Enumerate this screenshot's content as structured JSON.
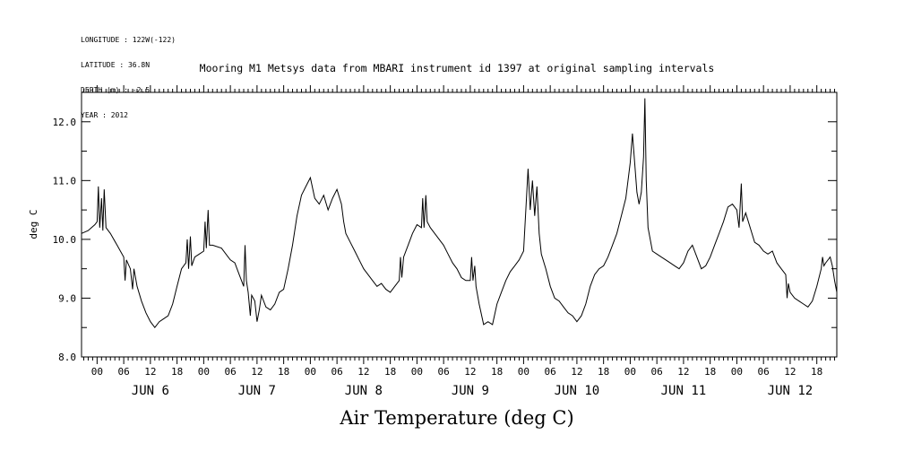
{
  "header": {
    "meta_lines": [
      "LONGITUDE : 122W(-122)",
      "LATITUDE : 36.8N",
      "DEPTH (m) : -2.5",
      "YEAR : 2012"
    ],
    "title": "Mooring M1 Metsys data from MBARI instrument id 1397 at original sampling intervals"
  },
  "chart_data": {
    "type": "line",
    "title": "Mooring M1 Metsys data from MBARI instrument id 1397 at original sampling intervals",
    "xlabel": "Air Temperature (deg C)",
    "ylabel": "deg C",
    "ylim": [
      8.0,
      12.5
    ],
    "xlim_hours": [
      -3.5,
      166.5
    ],
    "x_unit": "hours since 2012-06-06 00:00",
    "yticks": [
      "8.0",
      "9.0",
      "10.0",
      "11.0",
      "12.0"
    ],
    "hour_ticks": [
      "00",
      "06",
      "12",
      "18"
    ],
    "day_labels": [
      "JUN  6",
      "JUN  7",
      "JUN  8",
      "JUN  9",
      "JUN 10",
      "JUN 11",
      "JUN 12"
    ],
    "grid": false,
    "series": [
      {
        "color": "#000000",
        "points": [
          [
            -3.5,
            10.1
          ],
          [
            -2,
            10.15
          ],
          [
            -0.5,
            10.25
          ],
          [
            0,
            10.3
          ],
          [
            0.3,
            10.9
          ],
          [
            0.6,
            10.2
          ],
          [
            1,
            10.7
          ],
          [
            1.3,
            10.15
          ],
          [
            1.6,
            10.85
          ],
          [
            2,
            10.2
          ],
          [
            3,
            10.1
          ],
          [
            4.5,
            9.9
          ],
          [
            6,
            9.7
          ],
          [
            6.3,
            9.3
          ],
          [
            6.6,
            9.65
          ],
          [
            7.5,
            9.5
          ],
          [
            8,
            9.15
          ],
          [
            8.3,
            9.5
          ],
          [
            9,
            9.2
          ],
          [
            10,
            8.95
          ],
          [
            11,
            8.75
          ],
          [
            12,
            8.6
          ],
          [
            13,
            8.5
          ],
          [
            14,
            8.6
          ],
          [
            15,
            8.65
          ],
          [
            16,
            8.7
          ],
          [
            17,
            8.9
          ],
          [
            18,
            9.2
          ],
          [
            19,
            9.5
          ],
          [
            20,
            9.6
          ],
          [
            20.3,
            10.0
          ],
          [
            20.6,
            9.5
          ],
          [
            21,
            10.05
          ],
          [
            21.3,
            9.55
          ],
          [
            22,
            9.7
          ],
          [
            23,
            9.75
          ],
          [
            24,
            9.8
          ],
          [
            24.3,
            10.3
          ],
          [
            24.6,
            9.85
          ],
          [
            25,
            10.5
          ],
          [
            25.3,
            9.9
          ],
          [
            26,
            9.9
          ],
          [
            28,
            9.85
          ],
          [
            30,
            9.65
          ],
          [
            31,
            9.6
          ],
          [
            32,
            9.4
          ],
          [
            33,
            9.2
          ],
          [
            33.3,
            9.9
          ],
          [
            33.6,
            9.3
          ],
          [
            34,
            9.1
          ],
          [
            34.5,
            8.7
          ],
          [
            34.8,
            9.05
          ],
          [
            35.5,
            8.95
          ],
          [
            36,
            8.6
          ],
          [
            36.5,
            8.8
          ],
          [
            37,
            9.05
          ],
          [
            38,
            8.85
          ],
          [
            39,
            8.8
          ],
          [
            40,
            8.9
          ],
          [
            41,
            9.1
          ],
          [
            42,
            9.15
          ],
          [
            43,
            9.5
          ],
          [
            44,
            9.9
          ],
          [
            45,
            10.4
          ],
          [
            46,
            10.75
          ],
          [
            47,
            10.9
          ],
          [
            48,
            11.05
          ],
          [
            49,
            10.7
          ],
          [
            50,
            10.6
          ],
          [
            51,
            10.75
          ],
          [
            52,
            10.5
          ],
          [
            53,
            10.7
          ],
          [
            54,
            10.85
          ],
          [
            55,
            10.6
          ],
          [
            55.5,
            10.3
          ],
          [
            56,
            10.1
          ],
          [
            57,
            9.95
          ],
          [
            58,
            9.8
          ],
          [
            59,
            9.65
          ],
          [
            60,
            9.5
          ],
          [
            61,
            9.4
          ],
          [
            62,
            9.3
          ],
          [
            63,
            9.2
          ],
          [
            64,
            9.25
          ],
          [
            65,
            9.15
          ],
          [
            66,
            9.1
          ],
          [
            67,
            9.2
          ],
          [
            68,
            9.3
          ],
          [
            68.3,
            9.7
          ],
          [
            68.6,
            9.35
          ],
          [
            69,
            9.7
          ],
          [
            70,
            9.9
          ],
          [
            71,
            10.1
          ],
          [
            72,
            10.25
          ],
          [
            73,
            10.2
          ],
          [
            73.3,
            10.7
          ],
          [
            73.6,
            10.2
          ],
          [
            74,
            10.75
          ],
          [
            74.3,
            10.3
          ],
          [
            75,
            10.2
          ],
          [
            76,
            10.1
          ],
          [
            77,
            10.0
          ],
          [
            78,
            9.9
          ],
          [
            79,
            9.75
          ],
          [
            80,
            9.6
          ],
          [
            81,
            9.5
          ],
          [
            82,
            9.35
          ],
          [
            83,
            9.3
          ],
          [
            84,
            9.3
          ],
          [
            84.3,
            9.7
          ],
          [
            84.6,
            9.3
          ],
          [
            85,
            9.55
          ],
          [
            85.3,
            9.2
          ],
          [
            86,
            8.9
          ],
          [
            87,
            8.55
          ],
          [
            88,
            8.6
          ],
          [
            89,
            8.55
          ],
          [
            90,
            8.9
          ],
          [
            91,
            9.1
          ],
          [
            92,
            9.3
          ],
          [
            93,
            9.45
          ],
          [
            94,
            9.55
          ],
          [
            95,
            9.65
          ],
          [
            96,
            9.8
          ],
          [
            96.5,
            10.5
          ],
          [
            97,
            11.2
          ],
          [
            97.5,
            10.5
          ],
          [
            98,
            11.0
          ],
          [
            98.5,
            10.4
          ],
          [
            99,
            10.9
          ],
          [
            99.5,
            10.1
          ],
          [
            100,
            9.75
          ],
          [
            101,
            9.5
          ],
          [
            102,
            9.2
          ],
          [
            103,
            9.0
          ],
          [
            104,
            8.95
          ],
          [
            105,
            8.85
          ],
          [
            106,
            8.75
          ],
          [
            107,
            8.7
          ],
          [
            108,
            8.6
          ],
          [
            109,
            8.7
          ],
          [
            110,
            8.9
          ],
          [
            111,
            9.2
          ],
          [
            112,
            9.4
          ],
          [
            113,
            9.5
          ],
          [
            114,
            9.55
          ],
          [
            115,
            9.7
          ],
          [
            116,
            9.9
          ],
          [
            117,
            10.1
          ],
          [
            118,
            10.4
          ],
          [
            119,
            10.7
          ],
          [
            120,
            11.3
          ],
          [
            120.5,
            11.8
          ],
          [
            121,
            11.3
          ],
          [
            121.5,
            10.8
          ],
          [
            122,
            10.6
          ],
          [
            122.5,
            10.8
          ],
          [
            123,
            11.4
          ],
          [
            123.3,
            12.4
          ],
          [
            123.6,
            11.0
          ],
          [
            124,
            10.2
          ],
          [
            125,
            9.8
          ],
          [
            126,
            9.75
          ],
          [
            127,
            9.7
          ],
          [
            128,
            9.65
          ],
          [
            129,
            9.6
          ],
          [
            130,
            9.55
          ],
          [
            131,
            9.5
          ],
          [
            132,
            9.6
          ],
          [
            133,
            9.8
          ],
          [
            134,
            9.9
          ],
          [
            135,
            9.7
          ],
          [
            136,
            9.5
          ],
          [
            137,
            9.55
          ],
          [
            138,
            9.7
          ],
          [
            139,
            9.9
          ],
          [
            140,
            10.1
          ],
          [
            141,
            10.3
          ],
          [
            142,
            10.55
          ],
          [
            143,
            10.6
          ],
          [
            144,
            10.5
          ],
          [
            144.5,
            10.2
          ],
          [
            145,
            10.95
          ],
          [
            145.3,
            10.3
          ],
          [
            146,
            10.45
          ],
          [
            147,
            10.2
          ],
          [
            148,
            9.95
          ],
          [
            149,
            9.9
          ],
          [
            150,
            9.8
          ],
          [
            151,
            9.75
          ],
          [
            152,
            9.8
          ],
          [
            153,
            9.6
          ],
          [
            154,
            9.5
          ],
          [
            155,
            9.4
          ],
          [
            155.3,
            9.0
          ],
          [
            155.6,
            9.25
          ],
          [
            156,
            9.1
          ],
          [
            157,
            9.0
          ],
          [
            158,
            8.95
          ],
          [
            159,
            8.9
          ],
          [
            160,
            8.85
          ],
          [
            161,
            8.95
          ],
          [
            162,
            9.2
          ],
          [
            163,
            9.5
          ],
          [
            163.3,
            9.7
          ],
          [
            163.6,
            9.55
          ],
          [
            164,
            9.6
          ],
          [
            165,
            9.7
          ],
          [
            165.5,
            9.55
          ],
          [
            166,
            9.3
          ],
          [
            166.5,
            9.1
          ]
        ]
      }
    ]
  }
}
